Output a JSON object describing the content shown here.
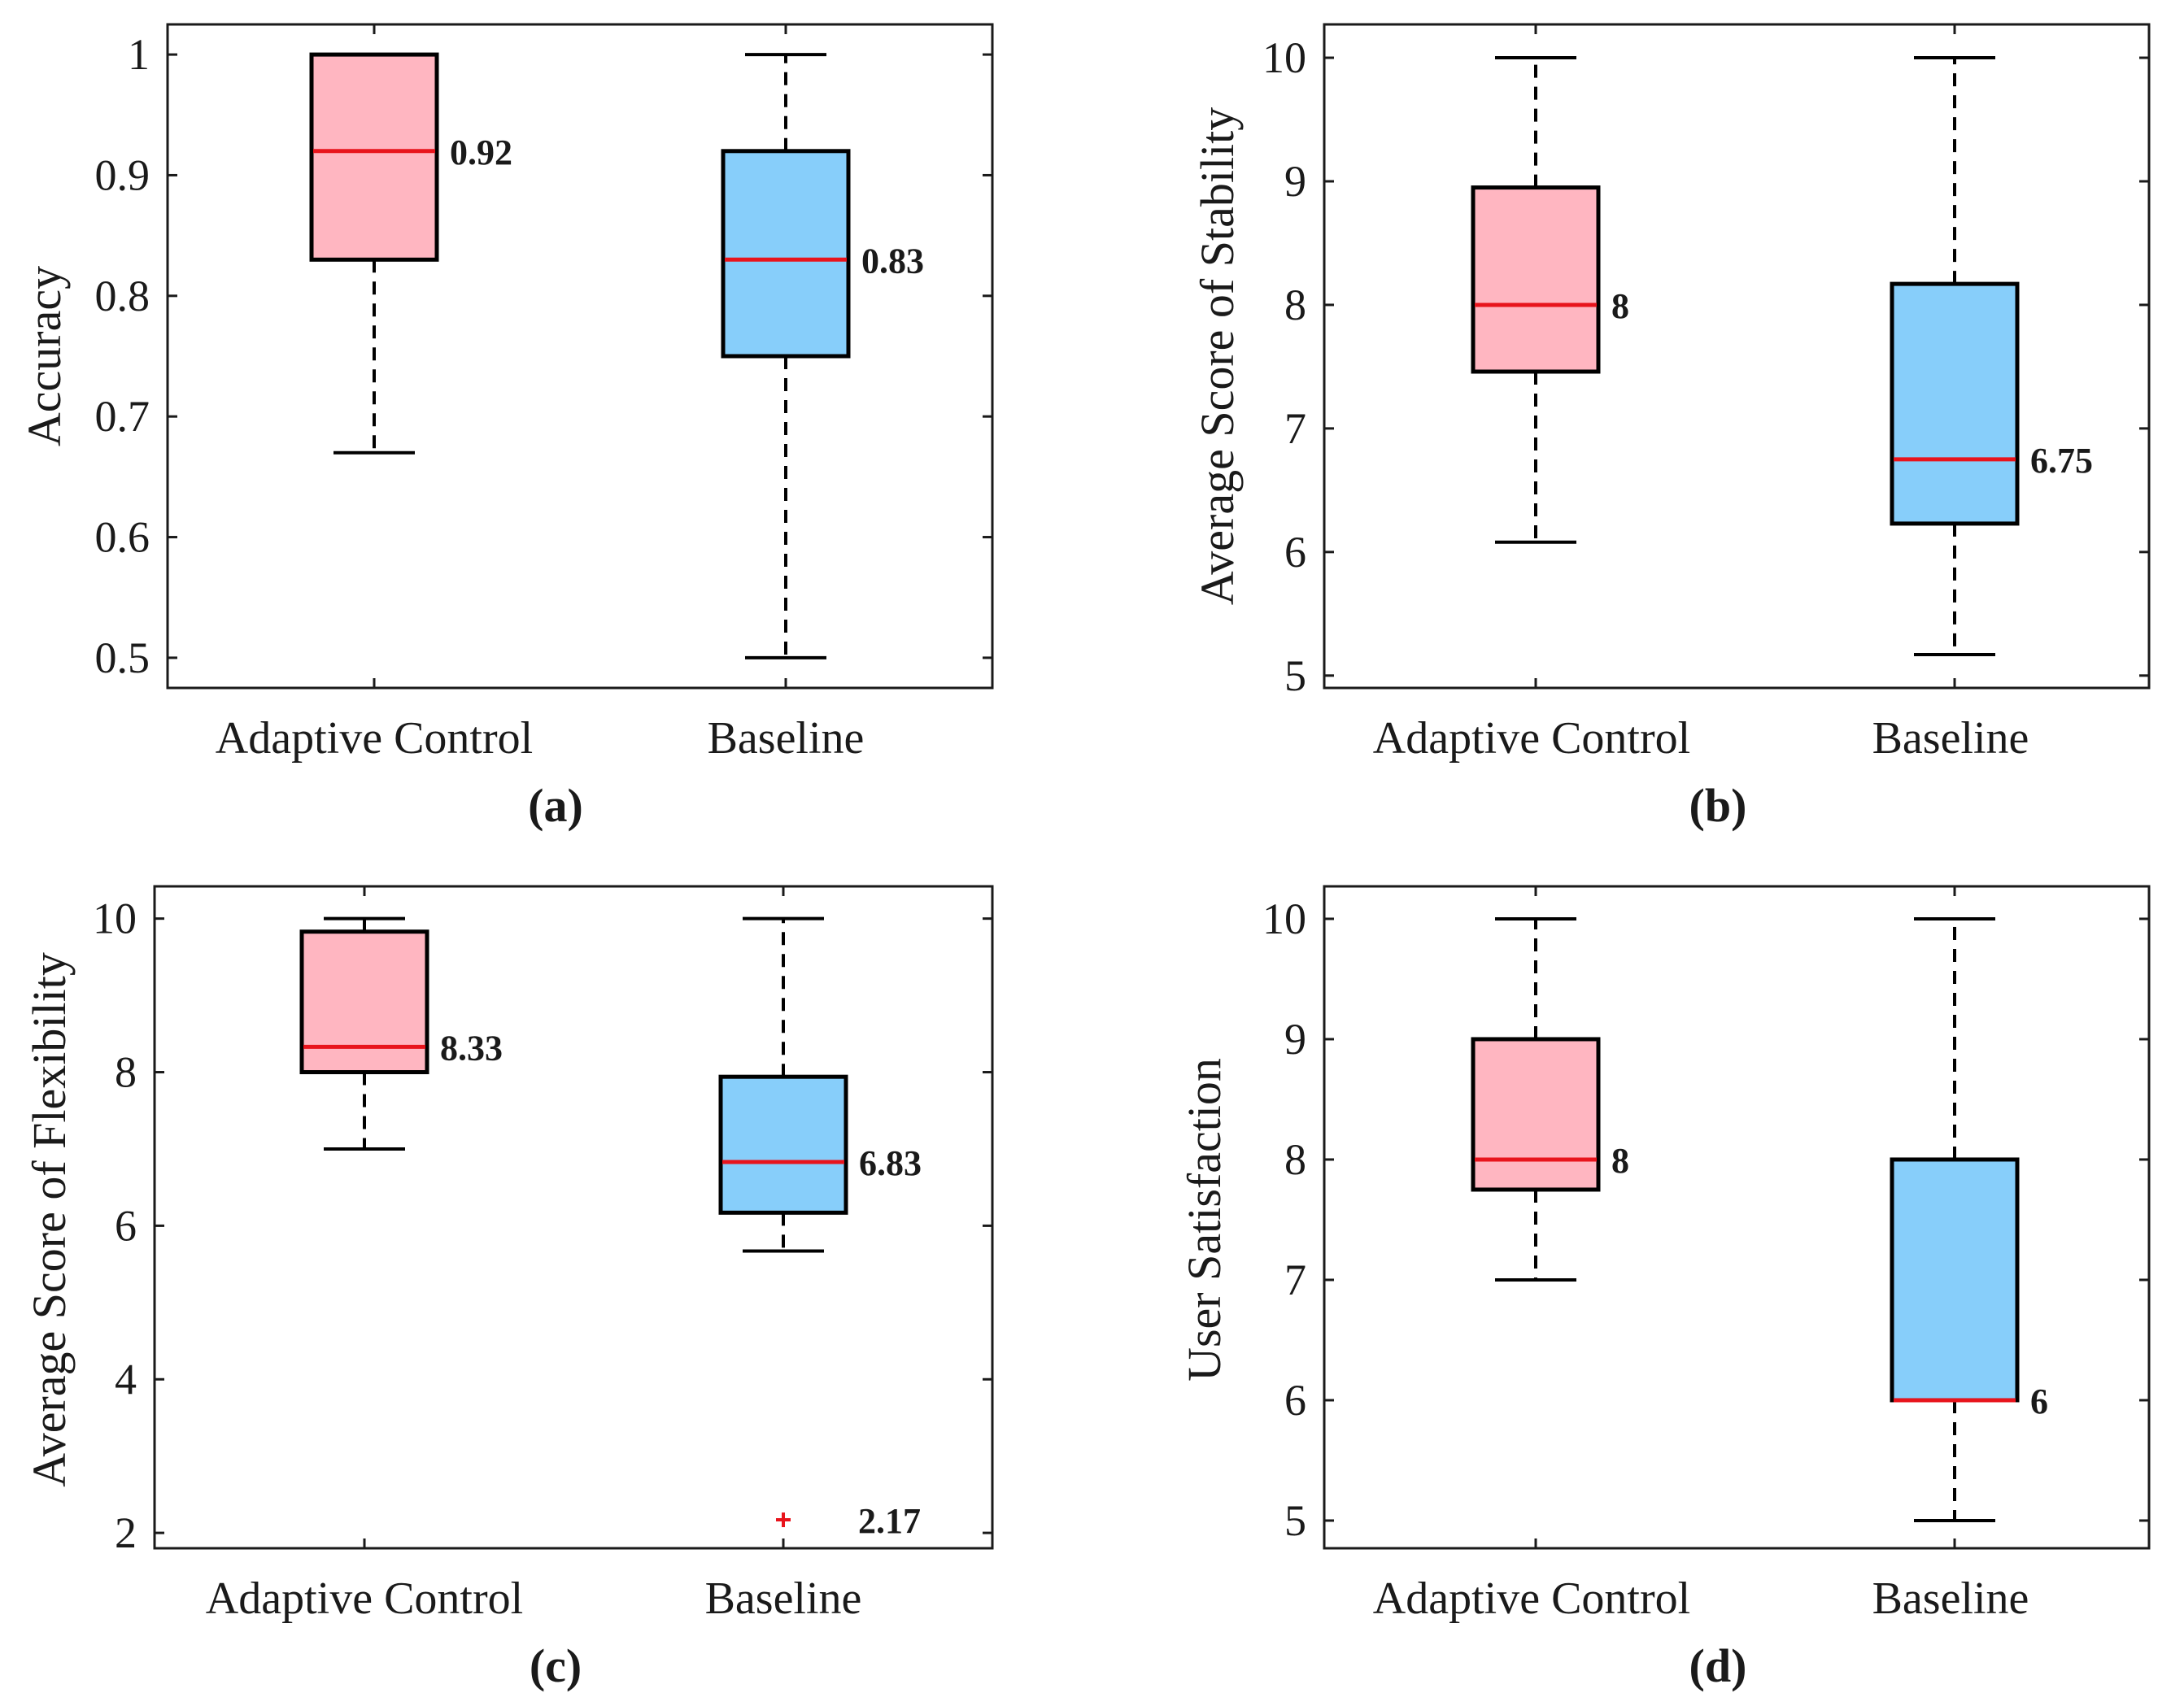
{
  "colors": {
    "adaptive_fill": "#FFB6C1",
    "baseline_fill": "#87CEFA",
    "median": "#E8141C",
    "outlier": "#E8141C",
    "stroke": "#000000"
  },
  "chart_data": [
    {
      "type": "box",
      "panel_label": "(a)",
      "ylabel": "Accuracy",
      "ylim": [
        0.475,
        1.025
      ],
      "yticks": [
        0.5,
        0.6,
        0.7,
        0.8,
        0.9,
        1
      ],
      "ytick_labels": [
        "0.5",
        "0.6",
        "0.7",
        "0.8",
        "0.9",
        "1"
      ],
      "categories": [
        "Adaptive Control",
        "Baseline"
      ],
      "boxes": [
        {
          "name": "Adaptive Control",
          "whisker_low": 0.67,
          "q1": 0.83,
          "median": 0.92,
          "q3": 1.0,
          "whisker_high": 1.0,
          "median_label": "0.92",
          "outliers": []
        },
        {
          "name": "Baseline",
          "whisker_low": 0.5,
          "q1": 0.75,
          "median": 0.83,
          "q3": 0.92,
          "whisker_high": 1.0,
          "median_label": "0.83",
          "outliers": []
        }
      ]
    },
    {
      "type": "box",
      "panel_label": "(b)",
      "ylabel": "Average Score of Stability",
      "ylim": [
        4.9,
        10.27
      ],
      "yticks": [
        5,
        6,
        7,
        8,
        9,
        10
      ],
      "ytick_labels": [
        "5",
        "6",
        "7",
        "8",
        "9",
        "10"
      ],
      "categories": [
        "Adaptive Control",
        "Baseline"
      ],
      "boxes": [
        {
          "name": "Adaptive Control",
          "whisker_low": 6.08,
          "q1": 7.46,
          "median": 8.0,
          "q3": 8.95,
          "whisker_high": 10.0,
          "median_label": "8",
          "outliers": []
        },
        {
          "name": "Baseline",
          "whisker_low": 5.17,
          "q1": 6.23,
          "median": 6.75,
          "q3": 8.17,
          "whisker_high": 10.0,
          "median_label": "6.75",
          "outliers": []
        }
      ]
    },
    {
      "type": "box",
      "panel_label": "(c)",
      "ylabel": "Average Score of Flexibility",
      "ylim": [
        1.8,
        10.42
      ],
      "yticks": [
        2,
        4,
        6,
        8,
        10
      ],
      "ytick_labels": [
        "2",
        "4",
        "6",
        "8",
        "10"
      ],
      "categories": [
        "Adaptive Control",
        "Baseline"
      ],
      "boxes": [
        {
          "name": "Adaptive Control",
          "whisker_low": 7.0,
          "q1": 8.0,
          "median": 8.33,
          "q3": 9.83,
          "whisker_high": 10.0,
          "median_label": "8.33",
          "outliers": []
        },
        {
          "name": "Baseline",
          "whisker_low": 5.67,
          "q1": 6.17,
          "median": 6.83,
          "q3": 7.94,
          "whisker_high": 10.0,
          "median_label": "6.83",
          "outliers": [
            2.17
          ],
          "outlier_labels": [
            "2.17"
          ]
        }
      ]
    },
    {
      "type": "box",
      "panel_label": "(d)",
      "ylabel": "User Satisfaction",
      "ylim": [
        4.77,
        10.27
      ],
      "yticks": [
        5,
        6,
        7,
        8,
        9,
        10
      ],
      "ytick_labels": [
        "5",
        "6",
        "7",
        "8",
        "9",
        "10"
      ],
      "categories": [
        "Adaptive Control",
        "Baseline"
      ],
      "boxes": [
        {
          "name": "Adaptive Control",
          "whisker_low": 7.0,
          "q1": 7.75,
          "median": 8.0,
          "q3": 9.0,
          "whisker_high": 10.0,
          "median_label": "8",
          "outliers": []
        },
        {
          "name": "Baseline",
          "whisker_low": 5.0,
          "q1": 6.0,
          "median": 6.0,
          "q3": 8.0,
          "whisker_high": 10.0,
          "median_label": "6",
          "outliers": []
        }
      ]
    }
  ]
}
